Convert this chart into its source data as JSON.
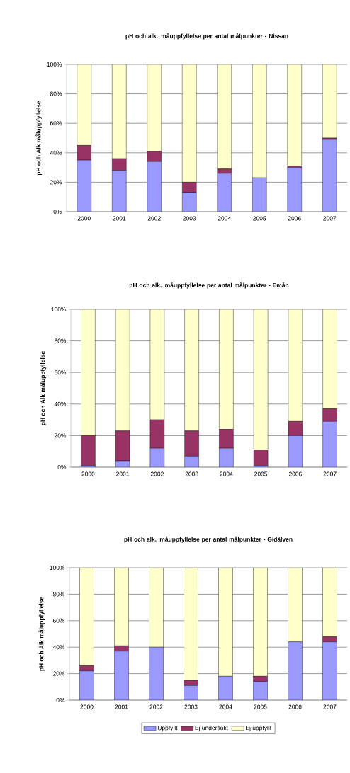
{
  "chart_data": [
    {
      "type": "bar",
      "title": "pH och alk. måuppfyllelse per antal målpunkter - Nissan",
      "ylabel": "pH och Alk måluppfyllelse",
      "categories": [
        "2000",
        "2001",
        "2002",
        "2003",
        "2004",
        "2005",
        "2006",
        "2007"
      ],
      "stacked": true,
      "grid": "y",
      "legend": false,
      "ylim": [
        0,
        100
      ],
      "yticks": [
        {
          "value": 0,
          "label": "0%"
        },
        {
          "value": 20,
          "label": "20%"
        },
        {
          "value": 40,
          "label": "40%"
        },
        {
          "value": 60,
          "label": "60%"
        },
        {
          "value": 80,
          "label": "80%"
        },
        {
          "value": 100,
          "label": "100%"
        }
      ],
      "series": [
        {
          "color": "#9999ff",
          "values": [
            35,
            28,
            34,
            13,
            26,
            23,
            30,
            49
          ]
        },
        {
          "color": "#993366",
          "values": [
            10,
            8,
            7,
            7,
            3,
            0,
            1,
            1
          ]
        },
        {
          "color": "#ffffcc",
          "values": [
            55,
            64,
            59,
            80,
            71,
            77,
            69,
            50
          ]
        }
      ]
    },
    {
      "type": "bar",
      "title": "pH och alk. måuppfyllelse per antal målpunkter - Emån",
      "ylabel": "pH och Alk måluppfyllelse",
      "categories": [
        "2000",
        "2001",
        "2002",
        "2003",
        "2004",
        "2005",
        "2006",
        "2007"
      ],
      "stacked": true,
      "grid": "y",
      "legend": false,
      "ylim": [
        0,
        100
      ],
      "yticks": [
        {
          "value": 0,
          "label": "0%"
        },
        {
          "value": 20,
          "label": "20%"
        },
        {
          "value": 40,
          "label": "40%"
        },
        {
          "value": 60,
          "label": "60%"
        },
        {
          "value": 80,
          "label": "80%"
        },
        {
          "value": 100,
          "label": "100%"
        }
      ],
      "series": [
        {
          "color": "#9999ff",
          "values": [
            1,
            4,
            12,
            7,
            12,
            1,
            20,
            29
          ]
        },
        {
          "color": "#993366",
          "values": [
            19,
            19,
            18,
            16,
            12,
            10,
            9,
            8
          ]
        },
        {
          "color": "#ffffcc",
          "values": [
            80,
            77,
            70,
            77,
            76,
            89,
            71,
            63
          ]
        }
      ]
    },
    {
      "type": "bar",
      "title": "pH och alk. måuppfyllelse per antal målpunkter - Gidälven",
      "ylabel": "pH och Alk måluppfyllelse",
      "categories": [
        "2000",
        "2001",
        "2002",
        "2003",
        "2004",
        "2005",
        "2006",
        "2007"
      ],
      "stacked": true,
      "grid": "y",
      "legend": "bottom",
      "ylim": [
        0,
        100
      ],
      "yticks": [
        {
          "value": 0,
          "label": "0%"
        },
        {
          "value": 20,
          "label": "20%"
        },
        {
          "value": 40,
          "label": "40%"
        },
        {
          "value": 60,
          "label": "60%"
        },
        {
          "value": 80,
          "label": "80%"
        },
        {
          "value": 100,
          "label": "100%"
        }
      ],
      "series": [
        {
          "name": "Uppfyllt",
          "color": "#9999ff",
          "values": [
            22,
            37,
            40,
            11,
            18,
            14,
            44,
            44
          ]
        },
        {
          "name": "Ej undersökt",
          "color": "#993366",
          "values": [
            4,
            4,
            0,
            4,
            0,
            4,
            0,
            4
          ]
        },
        {
          "name": "Ej uppfyllt",
          "color": "#ffffcc",
          "values": [
            74,
            59,
            60,
            85,
            82,
            82,
            56,
            52
          ]
        }
      ]
    }
  ]
}
